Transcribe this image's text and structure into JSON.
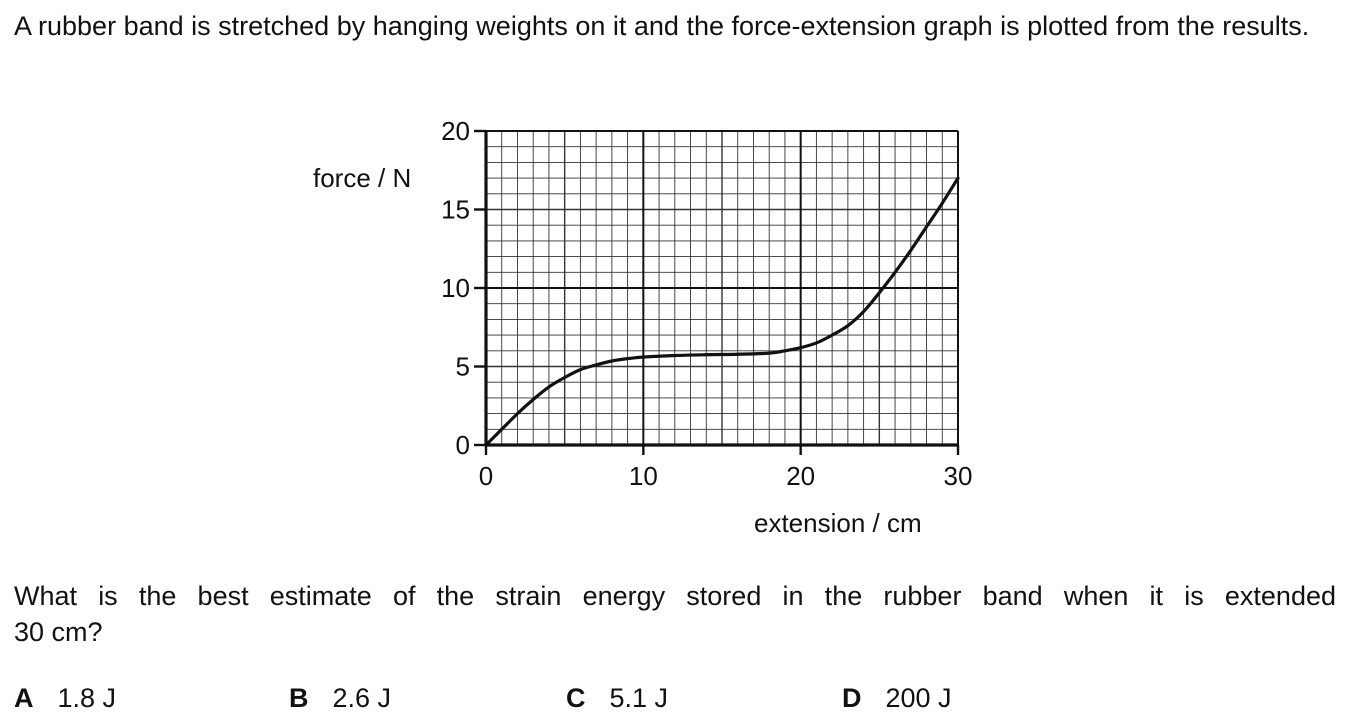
{
  "question": {
    "intro": "A rubber band is stretched by hanging weights on it and the force-extension graph is plotted from the results.",
    "prompt_line1": "What is the best estimate of the strain energy stored in the rubber band when it is extended",
    "prompt_line2": "30 cm?"
  },
  "options": [
    {
      "letter": "A",
      "text": "1.8 J"
    },
    {
      "letter": "B",
      "text": "2.6 J"
    },
    {
      "letter": "C",
      "text": "5.1 J"
    },
    {
      "letter": "D",
      "text": "200 J"
    }
  ],
  "chart_data": {
    "type": "line",
    "title": "",
    "xlabel": "extension / cm",
    "ylabel": "force / N",
    "xlim": [
      0,
      30
    ],
    "ylim": [
      0,
      20
    ],
    "x_ticks": [
      0,
      10,
      20,
      30
    ],
    "y_ticks": [
      0,
      5,
      10,
      15,
      20
    ],
    "grid": true,
    "minor_grid_step": {
      "x": 1,
      "y": 1
    },
    "series": [
      {
        "x": [
          0,
          1,
          2,
          3,
          4,
          5,
          6,
          7,
          8,
          9,
          10,
          12,
          14,
          16,
          18,
          19,
          20,
          21,
          22,
          23,
          24,
          25,
          26,
          27,
          28,
          29,
          30
        ],
        "y": [
          0,
          1.0,
          2.0,
          2.9,
          3.7,
          4.3,
          4.8,
          5.1,
          5.35,
          5.5,
          5.6,
          5.7,
          5.75,
          5.78,
          5.85,
          6.0,
          6.2,
          6.5,
          7.0,
          7.6,
          8.5,
          9.7,
          11.0,
          12.4,
          13.9,
          15.4,
          17.0
        ]
      }
    ],
    "line_color": "#111111"
  }
}
